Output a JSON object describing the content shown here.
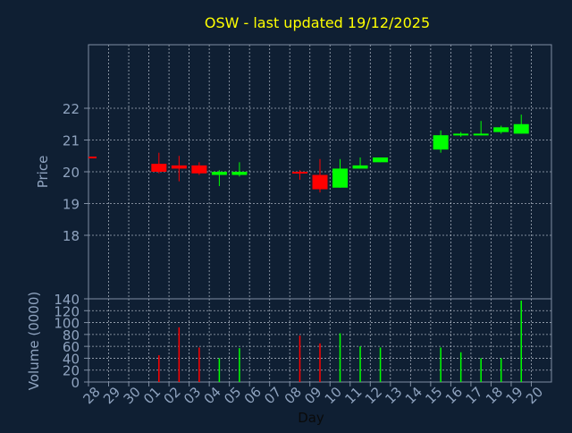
{
  "colors": {
    "background": "#0f1f33",
    "axis": "#7f8ea3",
    "grid": "#c8d0dc",
    "title": "#ffff00",
    "label": "#8fa3bf",
    "up": "#00ff00",
    "down": "#ff0000"
  },
  "chart_data": [
    {
      "type": "candlestick",
      "title": "OSW - last updated 19/12/2025",
      "ylabel": "Price",
      "ylim": [
        16.0,
        24.0
      ],
      "yticks": [
        18,
        19,
        20,
        21,
        22
      ],
      "grid": true,
      "previous_close": 20.45,
      "days": [
        "28",
        "29",
        "30",
        "01",
        "02",
        "03",
        "04",
        "05",
        "06",
        "07",
        "08",
        "09",
        "10",
        "11",
        "12",
        "13",
        "14",
        "15",
        "16",
        "17",
        "18",
        "19",
        "20"
      ],
      "candles": [
        {
          "day": "01",
          "open": 20.25,
          "close": 20.0,
          "high": 20.6,
          "low": 19.95
        },
        {
          "day": "02",
          "open": 20.2,
          "close": 20.1,
          "high": 20.5,
          "low": 19.7
        },
        {
          "day": "03",
          "open": 20.2,
          "close": 19.95,
          "high": 20.3,
          "low": 19.9
        },
        {
          "day": "04",
          "open": 19.9,
          "close": 20.0,
          "high": 20.05,
          "low": 19.55
        },
        {
          "day": "05",
          "open": 19.9,
          "close": 20.0,
          "high": 20.3,
          "low": 19.85
        },
        {
          "day": "08",
          "open": 20.0,
          "close": 19.95,
          "high": 20.05,
          "low": 19.75
        },
        {
          "day": "09",
          "open": 19.9,
          "close": 19.45,
          "high": 20.4,
          "low": 19.35
        },
        {
          "day": "10",
          "open": 19.5,
          "close": 20.1,
          "high": 20.4,
          "low": 19.5
        },
        {
          "day": "11",
          "open": 20.1,
          "close": 20.2,
          "high": 20.45,
          "low": 20.1
        },
        {
          "day": "12",
          "open": 20.3,
          "close": 20.45,
          "high": 20.45,
          "low": 20.3
        },
        {
          "day": "15",
          "open": 20.7,
          "close": 21.15,
          "high": 21.3,
          "low": 20.6
        },
        {
          "day": "16",
          "open": 21.15,
          "close": 21.2,
          "high": 21.25,
          "low": 21.1
        },
        {
          "day": "17",
          "open": 21.15,
          "close": 21.2,
          "high": 21.6,
          "low": 21.15
        },
        {
          "day": "18",
          "open": 21.25,
          "close": 21.4,
          "high": 21.45,
          "low": 21.2
        },
        {
          "day": "19",
          "open": 21.2,
          "close": 21.5,
          "high": 21.8,
          "low": 21.2
        }
      ]
    },
    {
      "type": "bar",
      "xlabel": "Day",
      "ylabel": "Volume (0000)",
      "ylim": [
        0,
        140
      ],
      "yticks": [
        0,
        20,
        40,
        60,
        80,
        100,
        120,
        140
      ],
      "grid": true,
      "categories": [
        "01",
        "02",
        "03",
        "04",
        "05",
        "08",
        "09",
        "10",
        "11",
        "12",
        "15",
        "16",
        "17",
        "18",
        "19"
      ],
      "values": [
        45,
        92,
        58,
        40,
        57,
        78,
        65,
        82,
        60,
        58,
        58,
        50,
        40,
        40,
        137
      ],
      "directions": [
        "down",
        "down",
        "down",
        "up",
        "up",
        "down",
        "down",
        "up",
        "up",
        "up",
        "up",
        "up",
        "up",
        "up",
        "up"
      ]
    }
  ]
}
